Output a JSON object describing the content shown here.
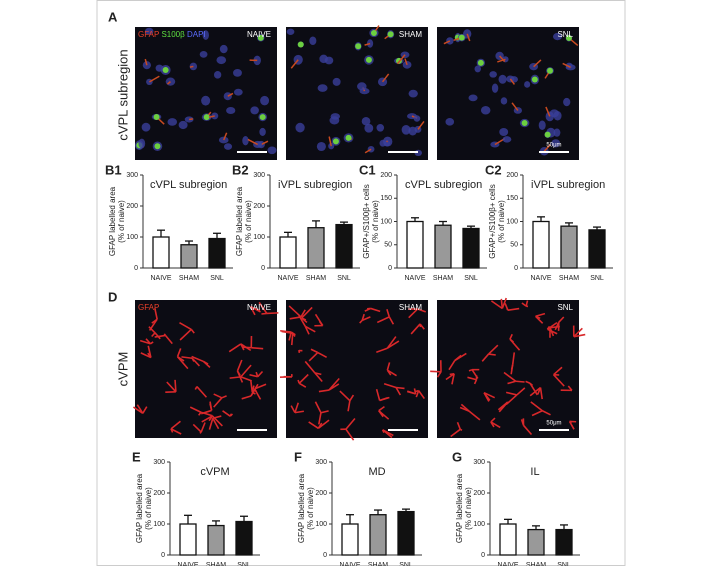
{
  "figure": {
    "panel_a": "A",
    "panel_d": "D",
    "row_a_label": "cVPL subregion",
    "row_d_label": "cVPM",
    "stain_a": [
      "GFAP",
      "S100β",
      "DAPI"
    ],
    "stain_d": "GFAP",
    "groups": [
      "NAIVE",
      "SHAM",
      "SNL"
    ],
    "scale": "50μm"
  },
  "chart_data": [
    {
      "type": "bar",
      "panel": "B1",
      "title": "cVPL subregion",
      "y_label": [
        "GFAP labelled area",
        "(% of naive)"
      ],
      "categories": [
        "NAIVE",
        "SHAM",
        "SNL"
      ],
      "values": [
        100,
        75,
        95
      ],
      "errors": [
        22,
        12,
        17
      ],
      "colors": [
        "#ffffff",
        "#999999",
        "#111111"
      ],
      "ylim": [
        0,
        300
      ],
      "yticks": [
        0,
        100,
        200,
        300
      ]
    },
    {
      "type": "bar",
      "panel": "B2",
      "title": "iVPL subregion",
      "y_label": [
        "GFAP labelled area",
        "(% of naive)"
      ],
      "categories": [
        "NAIVE",
        "SHAM",
        "SNL"
      ],
      "values": [
        100,
        130,
        140
      ],
      "errors": [
        15,
        22,
        8
      ],
      "colors": [
        "#ffffff",
        "#999999",
        "#111111"
      ],
      "ylim": [
        0,
        300
      ],
      "yticks": [
        0,
        100,
        200,
        300
      ]
    },
    {
      "type": "bar",
      "panel": "C1",
      "title": "cVPL subregion",
      "y_label": [
        "GFAP+/S100β+ cells",
        "(% of naive)"
      ],
      "categories": [
        "NAIVE",
        "SHAM",
        "SNL"
      ],
      "values": [
        100,
        92,
        85
      ],
      "errors": [
        8,
        8,
        5
      ],
      "colors": [
        "#ffffff",
        "#999999",
        "#111111"
      ],
      "ylim": [
        0,
        200
      ],
      "yticks": [
        0,
        50,
        100,
        150,
        200
      ]
    },
    {
      "type": "bar",
      "panel": "C2",
      "title": "iVPL subregion",
      "y_label": [
        "GFAP+/S100β+ cells",
        "(% of naive)"
      ],
      "categories": [
        "NAIVE",
        "SHAM",
        "SNL"
      ],
      "values": [
        100,
        90,
        82
      ],
      "errors": [
        10,
        7,
        6
      ],
      "colors": [
        "#ffffff",
        "#999999",
        "#111111"
      ],
      "ylim": [
        0,
        200
      ],
      "yticks": [
        0,
        50,
        100,
        150,
        200
      ]
    },
    {
      "type": "bar",
      "panel": "E",
      "title": "cVPM",
      "y_label": [
        "GFAP labelled area",
        "(% of naive)"
      ],
      "categories": [
        "NAIVE",
        "SHAM",
        "SNL"
      ],
      "values": [
        100,
        95,
        108
      ],
      "errors": [
        28,
        15,
        17
      ],
      "colors": [
        "#ffffff",
        "#999999",
        "#111111"
      ],
      "ylim": [
        0,
        300
      ],
      "yticks": [
        0,
        100,
        200,
        300
      ]
    },
    {
      "type": "bar",
      "panel": "F",
      "title": "MD",
      "y_label": [
        "GFAP labelled area",
        "(% of naive)"
      ],
      "categories": [
        "NAIVE",
        "SHAM",
        "SNL"
      ],
      "values": [
        100,
        130,
        140
      ],
      "errors": [
        30,
        15,
        8
      ],
      "colors": [
        "#ffffff",
        "#999999",
        "#111111"
      ],
      "ylim": [
        0,
        300
      ],
      "yticks": [
        0,
        100,
        200,
        300
      ]
    },
    {
      "type": "bar",
      "panel": "G",
      "title": "IL",
      "y_label": [
        "GFAP labelled area",
        "(% of naive)"
      ],
      "categories": [
        "NAIVE",
        "SHAM",
        "SNL"
      ],
      "values": [
        100,
        82,
        82
      ],
      "errors": [
        15,
        12,
        15
      ],
      "colors": [
        "#ffffff",
        "#999999",
        "#111111"
      ],
      "ylim": [
        0,
        300
      ],
      "yticks": [
        0,
        100,
        200,
        300
      ]
    }
  ]
}
